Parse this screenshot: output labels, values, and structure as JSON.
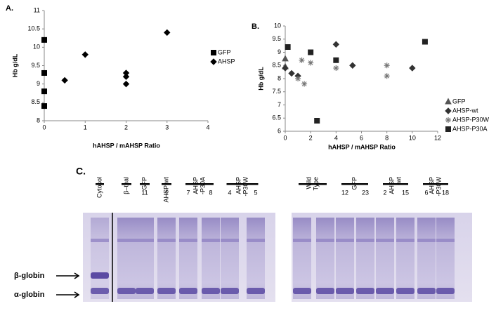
{
  "chart_data": [
    {
      "type": "scatter",
      "title": "A.",
      "x_label": "hAHSP / mAHSP Ratio",
      "y_label": "Hb g/dL",
      "xlim": [
        0,
        4
      ],
      "xticks": [
        0,
        1,
        2,
        3,
        4
      ],
      "ylim": [
        8,
        11
      ],
      "yticks": [
        8,
        8.5,
        9,
        9.5,
        10,
        10.5,
        11
      ],
      "legend": "right",
      "series": [
        {
          "name": "GFP",
          "color": "#000000",
          "marker": "square",
          "x": [
            0,
            0,
            0,
            0
          ],
          "values": [
            10.2,
            9.3,
            8.8,
            8.4
          ]
        },
        {
          "name": "AHSP",
          "color": "#000000",
          "marker": "diamond",
          "x": [
            0.5,
            1,
            2,
            2,
            2,
            3
          ],
          "values": [
            9.1,
            9.8,
            9.3,
            9.2,
            9.0,
            10.4
          ]
        }
      ]
    },
    {
      "type": "scatter",
      "title": "B.",
      "x_label": "hAHSP / mAHSP Ratio",
      "y_label": "Hb g/dL",
      "xlim": [
        0,
        12
      ],
      "xticks": [
        0,
        2,
        4,
        6,
        8,
        10,
        12
      ],
      "ylim": [
        6,
        10
      ],
      "yticks": [
        6,
        6.5,
        7,
        7.5,
        8,
        8.5,
        9,
        9.5,
        10
      ],
      "legend": "right",
      "series": [
        {
          "name": "GFP",
          "color": "#555555",
          "marker": "triangle",
          "x": [
            0,
            0
          ],
          "values": [
            8.75,
            8.45
          ]
        },
        {
          "name": "AHSP-wt",
          "color": "#333333",
          "marker": "diamond",
          "x": [
            0,
            0.5,
            1,
            4,
            5.3,
            10
          ],
          "values": [
            8.4,
            8.2,
            8.1,
            9.3,
            8.5,
            8.4
          ]
        },
        {
          "name": "AHSP-P30W",
          "color": "#777777",
          "marker": "asterisk",
          "x": [
            1,
            1.3,
            1.5,
            2,
            4,
            8,
            8
          ],
          "values": [
            8.0,
            8.7,
            7.8,
            8.6,
            8.4,
            8.5,
            8.1
          ]
        },
        {
          "name": "AHSP-P30A",
          "color": "#222222",
          "marker": "square",
          "x": [
            0.2,
            2,
            2.5,
            4,
            11
          ],
          "values": [
            9.2,
            9.0,
            6.4,
            8.7,
            9.4
          ]
        }
      ]
    }
  ],
  "gel": {
    "title": "C.",
    "lanes": [
      [
        "Cytosol"
      ],
      [
        "β–thal"
      ],
      [
        "GFP"
      ],
      [
        "AHSP-wt"
      ],
      [
        "AHSP",
        "-P30A"
      ],
      [
        "AHSP",
        "-P30W"
      ],
      [
        "Wild",
        "Type"
      ],
      [
        "GFP"
      ],
      [
        "AHSP",
        "-wt"
      ],
      [
        "AHSP",
        "-P30W"
      ]
    ],
    "numbers": [
      11,
      1,
      7,
      8,
      4,
      5,
      12,
      23,
      2,
      15,
      6,
      18
    ],
    "bands": [
      "β-globin",
      "α-globin"
    ]
  }
}
